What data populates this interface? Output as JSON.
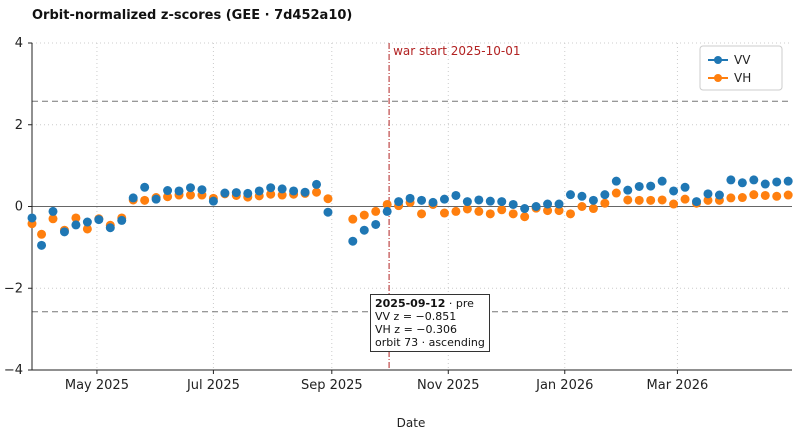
{
  "chart_data": {
    "type": "scatter",
    "title": "Orbit-normalized z-scores (GEE · 7d452a10)",
    "xlabel": "Date",
    "ylabel": "",
    "ylim": [
      -4,
      4
    ],
    "xlim": [
      "2025-03-28",
      "2026-04-30"
    ],
    "yticks": [
      -4,
      -2,
      0,
      2,
      4
    ],
    "yticklabels": [
      "−4",
      "−2",
      "0",
      "2",
      "4"
    ],
    "xticks": [
      "2025-05-01",
      "2025-07-01",
      "2025-09-01",
      "2025-11-01",
      "2026-01-01",
      "2026-03-01"
    ],
    "xticklabels": [
      "May 2025",
      "Jul 2025",
      "Sep 2025",
      "Nov 2025",
      "Jan 2026",
      "Mar 2026"
    ],
    "grid": true,
    "legend": "top-right",
    "reference_lines": [
      2.576,
      0,
      -2.576
    ],
    "event_line": {
      "date": "2025-10-01",
      "label": "war start 2025-10-01",
      "color": "#b22222"
    },
    "x": [
      "2025-03-28",
      "2025-04-02",
      "2025-04-08",
      "2025-04-14",
      "2025-04-20",
      "2025-04-26",
      "2025-05-02",
      "2025-05-08",
      "2025-05-14",
      "2025-05-20",
      "2025-05-26",
      "2025-06-01",
      "2025-06-07",
      "2025-06-13",
      "2025-06-19",
      "2025-06-25",
      "2025-07-01",
      "2025-07-07",
      "2025-07-13",
      "2025-07-19",
      "2025-07-25",
      "2025-07-31",
      "2025-08-06",
      "2025-08-12",
      "2025-08-18",
      "2025-08-24",
      "2025-08-30",
      "2025-09-12",
      "2025-09-18",
      "2025-09-24",
      "2025-09-30",
      "2025-10-06",
      "2025-10-12",
      "2025-10-18",
      "2025-10-24",
      "2025-10-30",
      "2025-11-05",
      "2025-11-11",
      "2025-11-17",
      "2025-11-23",
      "2025-11-29",
      "2025-12-05",
      "2025-12-11",
      "2025-12-17",
      "2025-12-23",
      "2025-12-29",
      "2026-01-04",
      "2026-01-10",
      "2026-01-16",
      "2026-01-22",
      "2026-01-28",
      "2026-02-03",
      "2026-02-09",
      "2026-02-15",
      "2026-02-21",
      "2026-02-27",
      "2026-03-05",
      "2026-03-11",
      "2026-03-17",
      "2026-03-23",
      "2026-03-29",
      "2026-04-04",
      "2026-04-10",
      "2026-04-16",
      "2026-04-22",
      "2026-04-28"
    ],
    "series": [
      {
        "name": "VV",
        "color": "#1f77b4",
        "values": [
          -0.28,
          -0.95,
          -0.12,
          -0.62,
          -0.45,
          -0.38,
          -0.32,
          -0.52,
          -0.34,
          0.21,
          0.47,
          0.18,
          0.39,
          0.38,
          0.46,
          0.41,
          0.13,
          0.33,
          0.34,
          0.32,
          0.38,
          0.46,
          0.43,
          0.38,
          0.35,
          0.54,
          -0.14,
          -0.85,
          -0.58,
          -0.44,
          -0.12,
          0.12,
          0.2,
          0.15,
          0.1,
          0.18,
          0.27,
          0.12,
          0.16,
          0.13,
          0.12,
          0.05,
          -0.05,
          0.0,
          0.06,
          0.06,
          0.29,
          0.25,
          0.15,
          0.29,
          0.62,
          0.4,
          0.49,
          0.5,
          0.62,
          0.38,
          0.47,
          0.12,
          0.31,
          0.28,
          0.65,
          0.58,
          0.65,
          0.55,
          0.6,
          0.62
        ]
      },
      {
        "name": "VH",
        "color": "#ff7f0e",
        "values": [
          -0.42,
          -0.68,
          -0.3,
          -0.58,
          -0.28,
          -0.55,
          -0.3,
          -0.46,
          -0.28,
          0.16,
          0.15,
          0.22,
          0.24,
          0.28,
          0.28,
          0.28,
          0.2,
          0.31,
          0.27,
          0.23,
          0.26,
          0.3,
          0.28,
          0.3,
          0.32,
          0.35,
          0.19,
          -0.31,
          -0.21,
          -0.12,
          0.05,
          0.02,
          0.1,
          -0.18,
          0.05,
          -0.16,
          -0.12,
          -0.06,
          -0.12,
          -0.18,
          -0.08,
          -0.18,
          -0.25,
          -0.04,
          -0.1,
          -0.1,
          -0.18,
          0.0,
          -0.05,
          0.08,
          0.33,
          0.16,
          0.15,
          0.15,
          0.16,
          0.06,
          0.18,
          0.08,
          0.15,
          0.15,
          0.21,
          0.22,
          0.29,
          0.27,
          0.25,
          0.28
        ]
      }
    ]
  },
  "tooltip": {
    "date": "2025-09-12",
    "suffix": " · pre",
    "vv": "VV z = −0.851",
    "vh": "VH z = −0.306",
    "orbit": "orbit 73 · ascending"
  }
}
